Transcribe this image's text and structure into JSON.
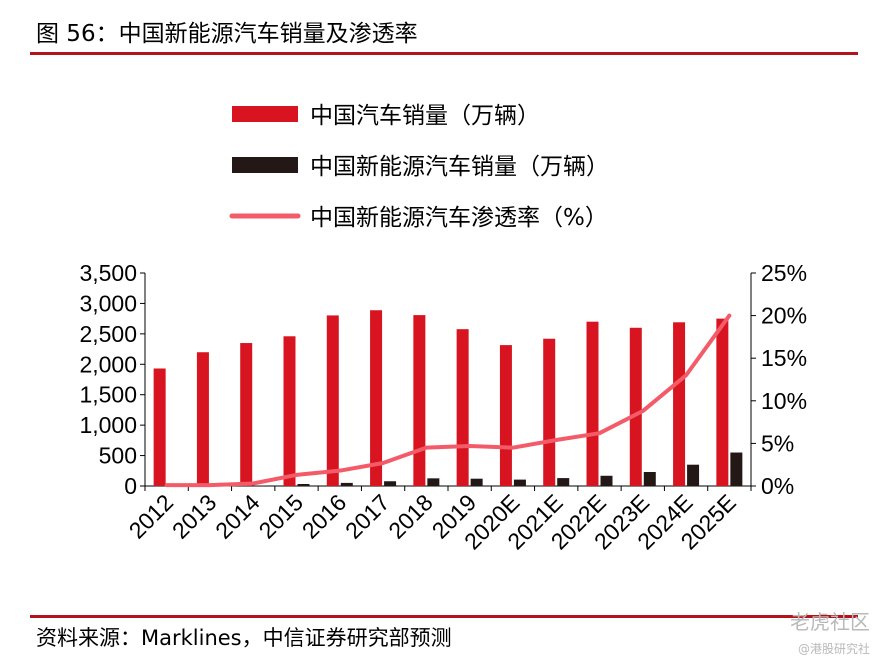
{
  "figure": {
    "title": "图 56：中国新能源汽车销量及渗透率",
    "source": "资料来源：Marklines，中信证券研究部预测",
    "watermark": "老虎社区",
    "watermark_sub": "@港股研究社"
  },
  "chart_data": {
    "type": "bar",
    "title": "中国新能源汽车销量及渗透率",
    "categories": [
      "2012",
      "2013",
      "2014",
      "2015",
      "2016",
      "2017",
      "2018",
      "2019",
      "2020E",
      "2021E",
      "2022E",
      "2023E",
      "2024E",
      "2025E"
    ],
    "series": [
      {
        "name": "中国汽车销量（万辆）",
        "type": "bar",
        "axis": "left",
        "color": "#d7141f",
        "values": [
          1931,
          2198,
          2349,
          2460,
          2803,
          2888,
          2808,
          2577,
          2315,
          2420,
          2700,
          2600,
          2690,
          2750
        ]
      },
      {
        "name": "中国新能源汽车销量（万辆）",
        "type": "bar",
        "axis": "left",
        "color": "#231815",
        "values": [
          1,
          2,
          7,
          33,
          51,
          78,
          126,
          120,
          105,
          130,
          168,
          230,
          350,
          550
        ]
      },
      {
        "name": "中国新能源汽车渗透率（%）",
        "type": "line",
        "axis": "right",
        "color": "#f45b69",
        "values": [
          0.1,
          0.1,
          0.3,
          1.3,
          1.8,
          2.7,
          4.5,
          4.7,
          4.5,
          5.4,
          6.2,
          8.8,
          13.0,
          20.0
        ]
      }
    ],
    "y_left": {
      "min": 0,
      "max": 3500,
      "ticks": [
        "0",
        "500",
        "1,000",
        "1,500",
        "2,000",
        "2,500",
        "3,000",
        "3,500"
      ]
    },
    "y_right": {
      "min": 0,
      "max": 25,
      "ticks": [
        "0%",
        "5%",
        "10%",
        "15%",
        "20%",
        "25%"
      ]
    },
    "grid": false,
    "legend_position": "top-center"
  }
}
